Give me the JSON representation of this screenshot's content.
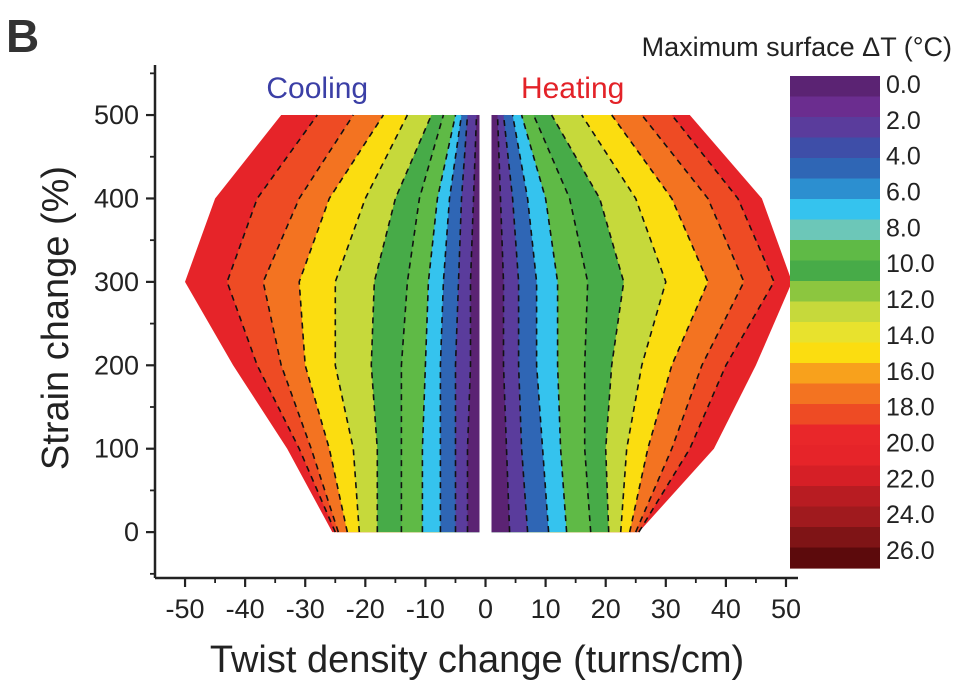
{
  "panel_label": "B",
  "chart_data": {
    "type": "heatmap",
    "subtype": "filled-contour",
    "xlabel": "Twist density change (turns/cm)",
    "ylabel": "Strain change (%)",
    "xlim": [
      -55,
      52
    ],
    "ylim": [
      -55,
      560
    ],
    "x_ticks": [
      -50,
      -40,
      -30,
      -20,
      -10,
      0,
      10,
      20,
      30,
      40,
      50
    ],
    "y_ticks": [
      0,
      100,
      200,
      300,
      400,
      500
    ],
    "grid": false,
    "region_labels": [
      {
        "text": "Cooling",
        "color": "#3b3fa6"
      },
      {
        "text": "Heating",
        "color": "#e32228"
      }
    ],
    "colorbar": {
      "title": "Maximum surface ΔT (°C)",
      "range": [
        0,
        27
      ],
      "labels": [
        "0.0",
        "2.0",
        "4.0",
        "6.0",
        "8.0",
        "10.0",
        "12.0",
        "14.0",
        "16.0",
        "18.0",
        "20.0",
        "22.0",
        "24.0",
        "26.0"
      ],
      "colors": [
        "#5b2373",
        "#6b2d8f",
        "#5a3c9c",
        "#3e4ea8",
        "#2f66b5",
        "#2c8fd0",
        "#35c3ee",
        "#6cc7b8",
        "#5fba46",
        "#47ab48",
        "#8cc63f",
        "#c6d93b",
        "#e8e22d",
        "#fbdd10",
        "#f8a11c",
        "#f37321",
        "#ee4b24",
        "#e9272a",
        "#e62429",
        "#d61f26",
        "#b81c22",
        "#a01a1e",
        "#7f1416",
        "#5c0a0c"
      ]
    },
    "cooling_region": {
      "boundary": [
        [
          -25.5,
          0
        ],
        [
          -33,
          100
        ],
        [
          -42,
          200
        ],
        [
          -50,
          300
        ],
        [
          -45,
          400
        ],
        [
          -34,
          500
        ],
        [
          -1,
          500
        ],
        [
          -1,
          0
        ]
      ],
      "contours": [
        {
          "level": 2,
          "x": [
            -3,
            -3,
            -2.5,
            -2.5,
            -2,
            -1.5
          ]
        },
        {
          "level": 4,
          "x": [
            -5,
            -5,
            -5,
            -4.5,
            -4,
            -3
          ]
        },
        {
          "level": 6,
          "x": [
            -7.5,
            -7.5,
            -7.5,
            -7,
            -6,
            -4
          ]
        },
        {
          "level": 8,
          "x": [
            -10.5,
            -10.5,
            -10,
            -9.5,
            -8,
            -5
          ]
        },
        {
          "level": 10,
          "x": [
            -14,
            -14,
            -14,
            -13,
            -11,
            -7
          ]
        },
        {
          "level": 12,
          "x": [
            -18,
            -18,
            -19,
            -18.5,
            -15,
            -9
          ]
        },
        {
          "level": 14,
          "x": [
            -21,
            -22,
            -25,
            -25,
            -20,
            -13
          ]
        },
        {
          "level": 16,
          "x": [
            -23,
            -26,
            -30,
            -31,
            -26,
            -17
          ]
        },
        {
          "level": 18,
          "x": [
            -24.5,
            -29,
            -34,
            -37,
            -31,
            -22
          ]
        },
        {
          "level": 20,
          "x": [
            -25,
            -31,
            -38,
            -43,
            -38,
            -28
          ]
        }
      ]
    },
    "heating_region": {
      "boundary": [
        [
          1,
          0
        ],
        [
          1,
          500
        ],
        [
          34,
          500
        ],
        [
          46,
          400
        ],
        [
          51,
          300
        ],
        [
          45,
          200
        ],
        [
          38,
          100
        ],
        [
          25.5,
          0
        ]
      ],
      "contours": [
        {
          "level": 2,
          "x": [
            4,
            3.5,
            3,
            3,
            2.5,
            2
          ]
        },
        {
          "level": 4,
          "x": [
            7,
            6,
            5.5,
            5.5,
            4.5,
            3
          ]
        },
        {
          "level": 6,
          "x": [
            10.5,
            9.5,
            8.5,
            8.5,
            7,
            4.5
          ]
        },
        {
          "level": 8,
          "x": [
            13.5,
            12.5,
            12,
            12,
            10,
            6
          ]
        },
        {
          "level": 10,
          "x": [
            17.5,
            16.5,
            16.5,
            17,
            14,
            8
          ]
        },
        {
          "level": 12,
          "x": [
            20.5,
            20,
            21,
            23,
            19,
            11
          ]
        },
        {
          "level": 14,
          "x": [
            22.5,
            23.5,
            26,
            30,
            25,
            16
          ]
        },
        {
          "level": 16,
          "x": [
            24,
            27,
            31,
            37,
            31,
            21
          ]
        },
        {
          "level": 18,
          "x": [
            25,
            31,
            36,
            43,
            37,
            26
          ]
        },
        {
          "level": 20,
          "x": [
            25.5,
            34,
            40,
            48,
            42,
            31
          ]
        }
      ]
    },
    "contour_y": [
      0,
      100,
      200,
      300,
      400,
      500
    ]
  }
}
